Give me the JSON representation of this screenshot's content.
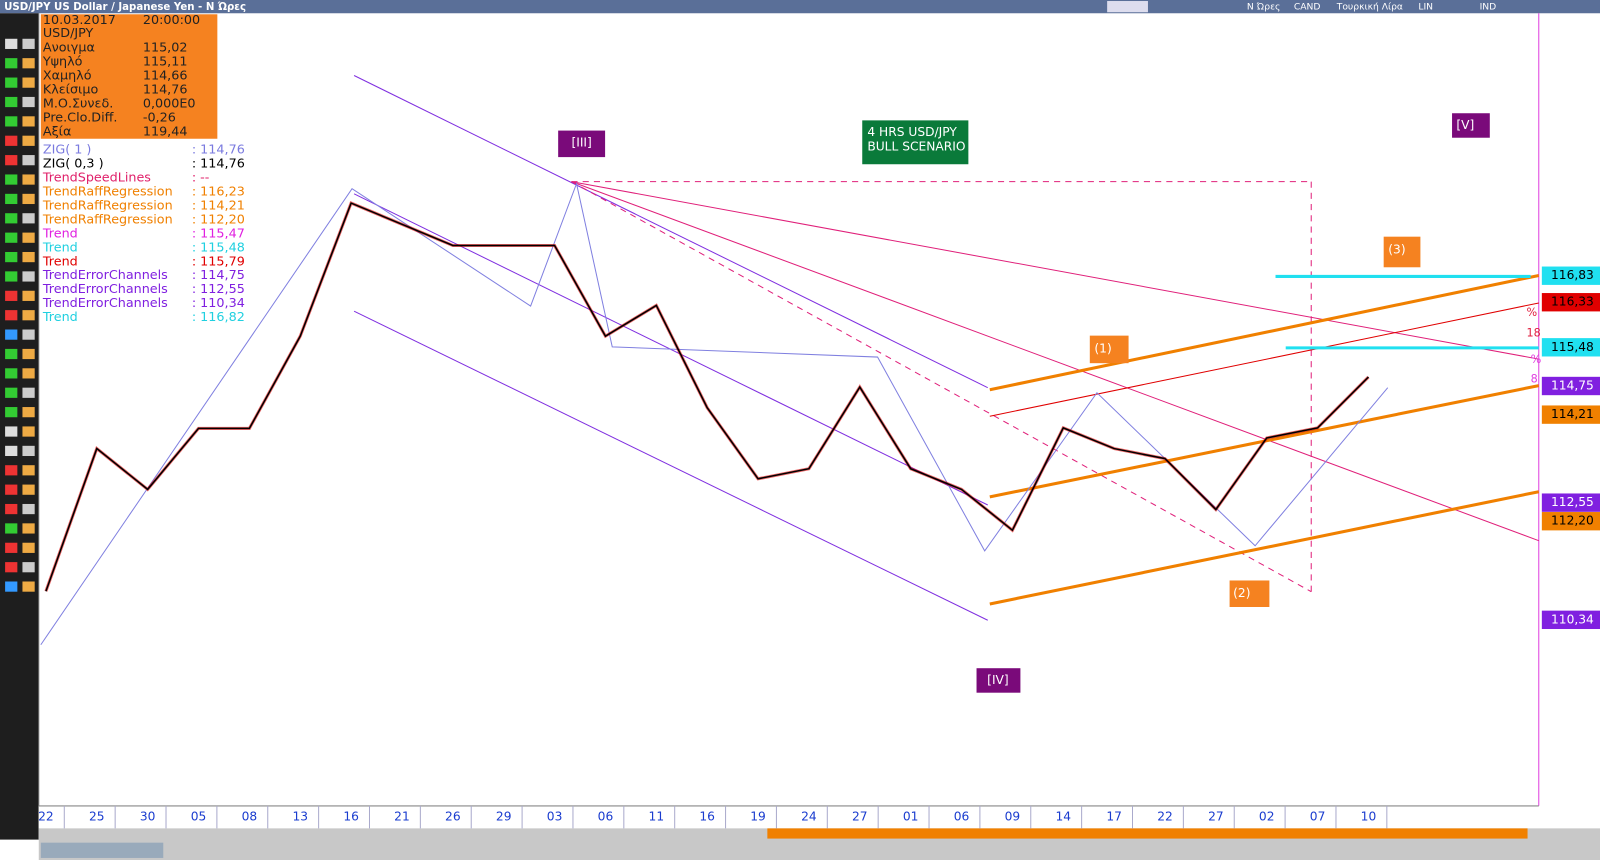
{
  "title_bar": {
    "title": "USD/JPY US Dollar / Japanese Yen - Ν Ώρες",
    "items": [
      "Ν Ώρες",
      "CAND",
      "Τουρκική Λίρα",
      "LIN",
      "IND"
    ]
  },
  "info_box": {
    "date": "10.03.2017",
    "time": "20:00:00",
    "symbol": "USD/JPY",
    "rows": [
      [
        "Ανοιγμα",
        "115,02"
      ],
      [
        "Υψηλό",
        "115,11"
      ],
      [
        "Χαμηλό",
        "114,66"
      ],
      [
        "Κλείσιμο",
        "114,76"
      ],
      [
        "Μ.Ο.Συνεδ.",
        "0,000E0"
      ],
      [
        "Pre.Clo.Diff.",
        "-0,26"
      ],
      [
        "Αξία",
        "119,44"
      ]
    ]
  },
  "indicators": [
    {
      "name": "ZIG( 1 )",
      "value": ": 114,76",
      "color": "#7a7adf"
    },
    {
      "name": "ZIG( 0,3 )",
      "value": ": 114,76",
      "color": "#000000"
    },
    {
      "name": "TrendSpeedLines",
      "value": ": --",
      "color": "#e0206a"
    },
    {
      "name": "TrendRaffRegression",
      "value": ": 116,23",
      "color": "#f08000"
    },
    {
      "name": "TrendRaffRegression",
      "value": ": 114,21",
      "color": "#f08000"
    },
    {
      "name": "TrendRaffRegression",
      "value": ": 112,20",
      "color": "#f08000"
    },
    {
      "name": "Trend",
      "value": ": 115,47",
      "color": "#e020e0"
    },
    {
      "name": "Trend",
      "value": ": 115,48",
      "color": "#20d0e0"
    },
    {
      "name": "Trend",
      "value": ": 115,79",
      "color": "#e00000"
    },
    {
      "name": "TrendErrorChannels",
      "value": ": 114,75",
      "color": "#8020e0"
    },
    {
      "name": "TrendErrorChannels",
      "value": ": 112,55",
      "color": "#8020e0"
    },
    {
      "name": "TrendErrorChannels",
      "value": ": 110,34",
      "color": "#8020e0"
    },
    {
      "name": "Trend",
      "value": ": 116,82",
      "color": "#20d0e0"
    }
  ],
  "chart_data": {
    "type": "line",
    "x": [
      "22",
      "25",
      "30",
      "05",
      "08",
      "13",
      "16",
      "21",
      "26",
      "29",
      "03",
      "06",
      "11",
      "16",
      "19",
      "24",
      "27",
      "01",
      "06",
      "09",
      "14",
      "17",
      "22",
      "27",
      "02",
      "07",
      "10"
    ],
    "values": [
      110.88,
      113.57,
      112.8,
      113.95,
      113.95,
      115.69,
      118.2,
      117.8,
      117.4,
      117.4,
      117.4,
      115.69,
      116.27,
      114.34,
      113.0,
      113.19,
      114.73,
      113.19,
      112.8,
      112.03,
      113.96,
      113.57,
      113.38,
      112.42,
      113.77,
      113.96,
      114.92
    ],
    "color": "#000000",
    "ylim": [
      106.83,
      121.78
    ],
    "yticks": [
      {
        "value": 116.83,
        "label": "116,83"
      },
      {
        "value": 116.33,
        "label": "116,33"
      },
      {
        "value": 115.48,
        "label": "115,48"
      },
      {
        "value": 114.75,
        "label": "114,75"
      },
      {
        "value": 114.21,
        "label": "114,21"
      },
      {
        "value": 112.55,
        "label": "112,55"
      },
      {
        "value": 112.2,
        "label": "112,20"
      },
      {
        "value": 110.34,
        "label": "110,34"
      }
    ],
    "ytick_colors": [
      "#20e0f0",
      "#e00000",
      "#20e0f0",
      "#8020e0",
      "#f08000",
      "#8020e0",
      "#f08000",
      "#8020e0"
    ],
    "annotations": [
      {
        "text": "[III]"
      },
      {
        "text": "[IV]"
      },
      {
        "text": "[V]"
      },
      {
        "text": "(1)"
      },
      {
        "text": "(2)"
      },
      {
        "text": "(3)"
      },
      {
        "text": "4 HRS USD/JPY"
      },
      {
        "text": "BULL SCENARIO"
      },
      {
        "text": "18"
      },
      {
        "text": "%"
      },
      {
        "text": "%"
      },
      {
        "text": "8"
      }
    ]
  }
}
